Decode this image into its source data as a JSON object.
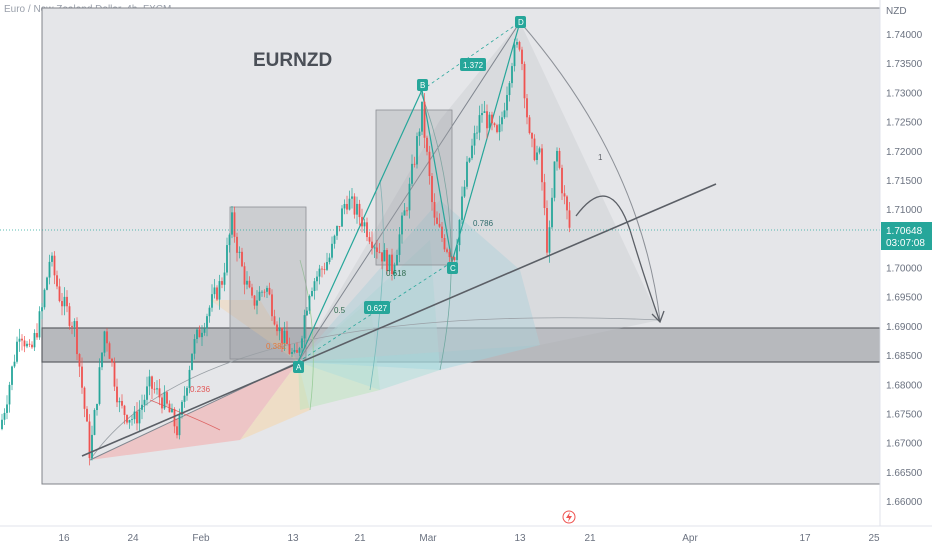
{
  "header": {
    "symbol_description": "Euro / New Zealand Dollar, 4h, FXCM"
  },
  "chart_data": {
    "type": "candlestick",
    "title": "EURNZD",
    "ylabel": "NZD",
    "ylim": [
      1.655,
      1.745
    ],
    "y_ticks": [
      "1.74000",
      "1.73500",
      "1.73000",
      "1.72500",
      "1.72000",
      "1.71500",
      "1.71000",
      "1.70500",
      "1.70000",
      "1.69500",
      "1.69000",
      "1.68500",
      "1.68000",
      "1.67500",
      "1.67000",
      "1.66500",
      "1.66000"
    ],
    "x_ticks": [
      "16",
      "24",
      "Feb",
      "13",
      "21",
      "Mar",
      "13",
      "21",
      "Apr",
      "17",
      "25"
    ],
    "last_price": "1.70648",
    "countdown": "03:07:08",
    "harmonic_points": {
      "A": "A",
      "B": "B",
      "C": "C",
      "D": "D"
    },
    "ratios": {
      "ab": "1.372",
      "bc": "0.627"
    },
    "fib_levels": [
      "0.236",
      "0.382",
      "0.5",
      "0.618",
      "0.786",
      "1"
    ],
    "support_zone": [
      1.684,
      1.6895
    ],
    "colors": {
      "up": "#26a69a",
      "down": "#ef5350",
      "accent": "#26a69a",
      "zone": "#787b86"
    },
    "flash_icon": "lightning-icon"
  }
}
